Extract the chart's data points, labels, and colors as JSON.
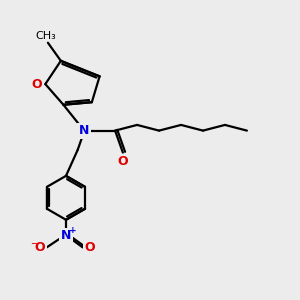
{
  "bg_color": "#ececec",
  "bond_color": "#000000",
  "N_color": "#0000dd",
  "O_color": "#dd0000",
  "lw": 1.6,
  "fsz": 9,
  "xlim": [
    -1.0,
    10.5
  ],
  "ylim": [
    -0.8,
    9.5
  ]
}
